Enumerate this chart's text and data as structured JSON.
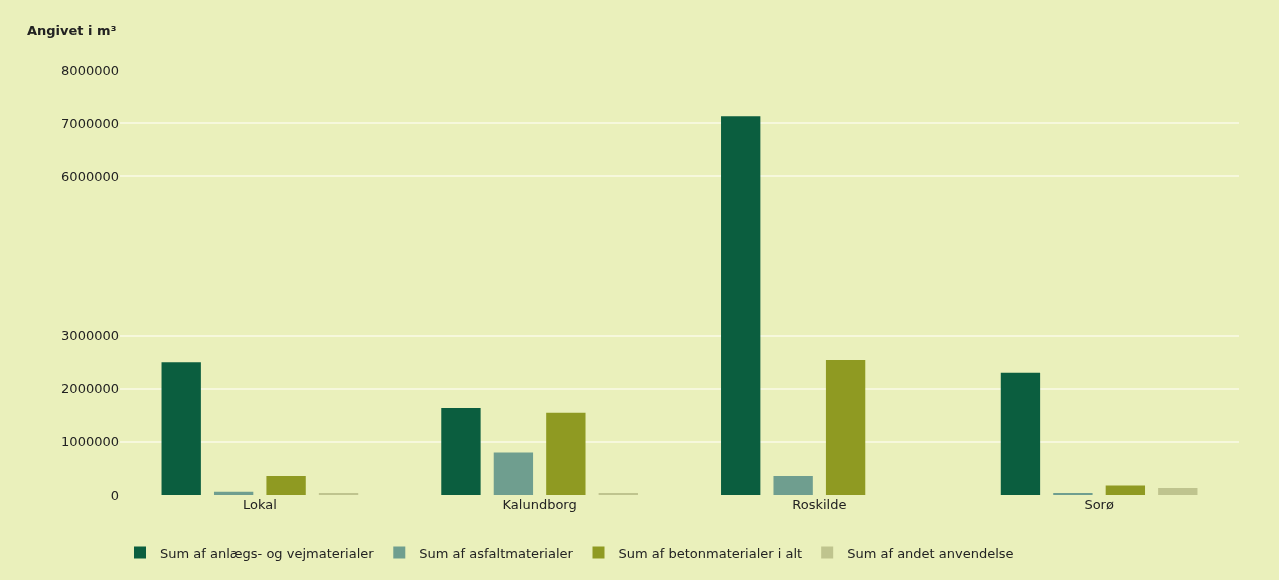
{
  "chart_data": {
    "type": "bar",
    "ylabel": "Angivet i m³",
    "categories": [
      "Lokal",
      "Kalundborg",
      "Roskilde",
      "Sorø"
    ],
    "series": [
      {
        "name": "Sum af anlægs- og vejmaterialer",
        "color": "#0b5e3f",
        "values": [
          2500000,
          1640000,
          7130000,
          2300000
        ]
      },
      {
        "name": "Sum af asfaltmaterialer",
        "color": "#6f9e8f",
        "values": [
          60000,
          800000,
          360000,
          20000
        ]
      },
      {
        "name": "Sum af betonmaterialer i alt",
        "color": "#8f9a22",
        "values": [
          360000,
          1550000,
          2540000,
          180000
        ]
      },
      {
        "name": "Sum af andet anvendelse",
        "color": "#bfc48e",
        "values": [
          20000,
          40000,
          0,
          130000
        ]
      }
    ],
    "ylim": [
      0,
      8000000
    ],
    "yticks": [
      0,
      1000000,
      2000000,
      3000000,
      6000000,
      7000000,
      8000000
    ],
    "grid": "y",
    "legend": "bottom"
  }
}
